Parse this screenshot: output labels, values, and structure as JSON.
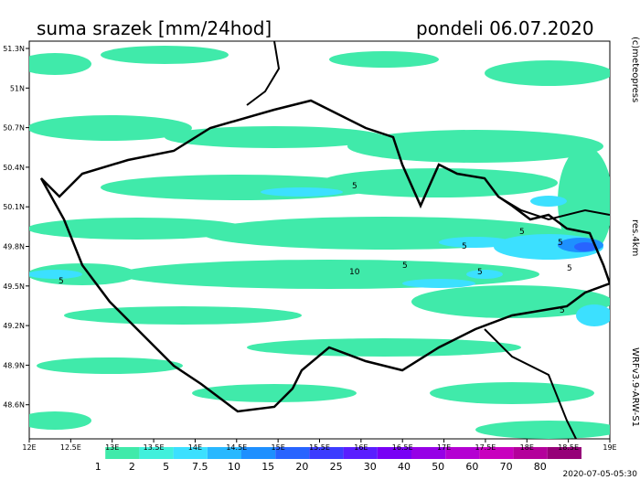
{
  "header": {
    "title": "suma srazek [mm/24hod]",
    "date": "pondeli 06.07.2020"
  },
  "map": {
    "lat_ticks": [
      "51.3N",
      "51N",
      "50.7N",
      "50.4N",
      "50.1N",
      "49.8N",
      "49.5N",
      "49.2N",
      "48.9N",
      "48.6N"
    ],
    "lon_ticks": [
      "12E",
      "12.5E",
      "13E",
      "13.5E",
      "14E",
      "14.5E",
      "15E",
      "15.5E",
      "16E",
      "16.5E",
      "17E",
      "17.5E",
      "18E",
      "18.5E",
      "19E"
    ],
    "contour_labels": [
      "5",
      "5",
      "5",
      "5",
      "5",
      "5",
      "10",
      "5",
      "5",
      "5"
    ]
  },
  "legend": {
    "colors": [
      "#ffffff",
      "#40eaaa",
      "#40f0dc",
      "#3ce0ff",
      "#28b8ff",
      "#1e90ff",
      "#2864ff",
      "#3c3cff",
      "#5a1eff",
      "#7800f5",
      "#9600e6",
      "#b400d2",
      "#c800be",
      "#b4009b",
      "#960078"
    ],
    "labels": [
      "1",
      "2",
      "5",
      "7.5",
      "10",
      "15",
      "20",
      "25",
      "30",
      "40",
      "50",
      "60",
      "70",
      "80"
    ]
  },
  "side": {
    "copyright": "(c)meteopress",
    "resolution": "res.4km",
    "model": "WRFv3.9-ARW-S1"
  },
  "footer": {
    "timestamp": "2020-07-05-05:30"
  }
}
